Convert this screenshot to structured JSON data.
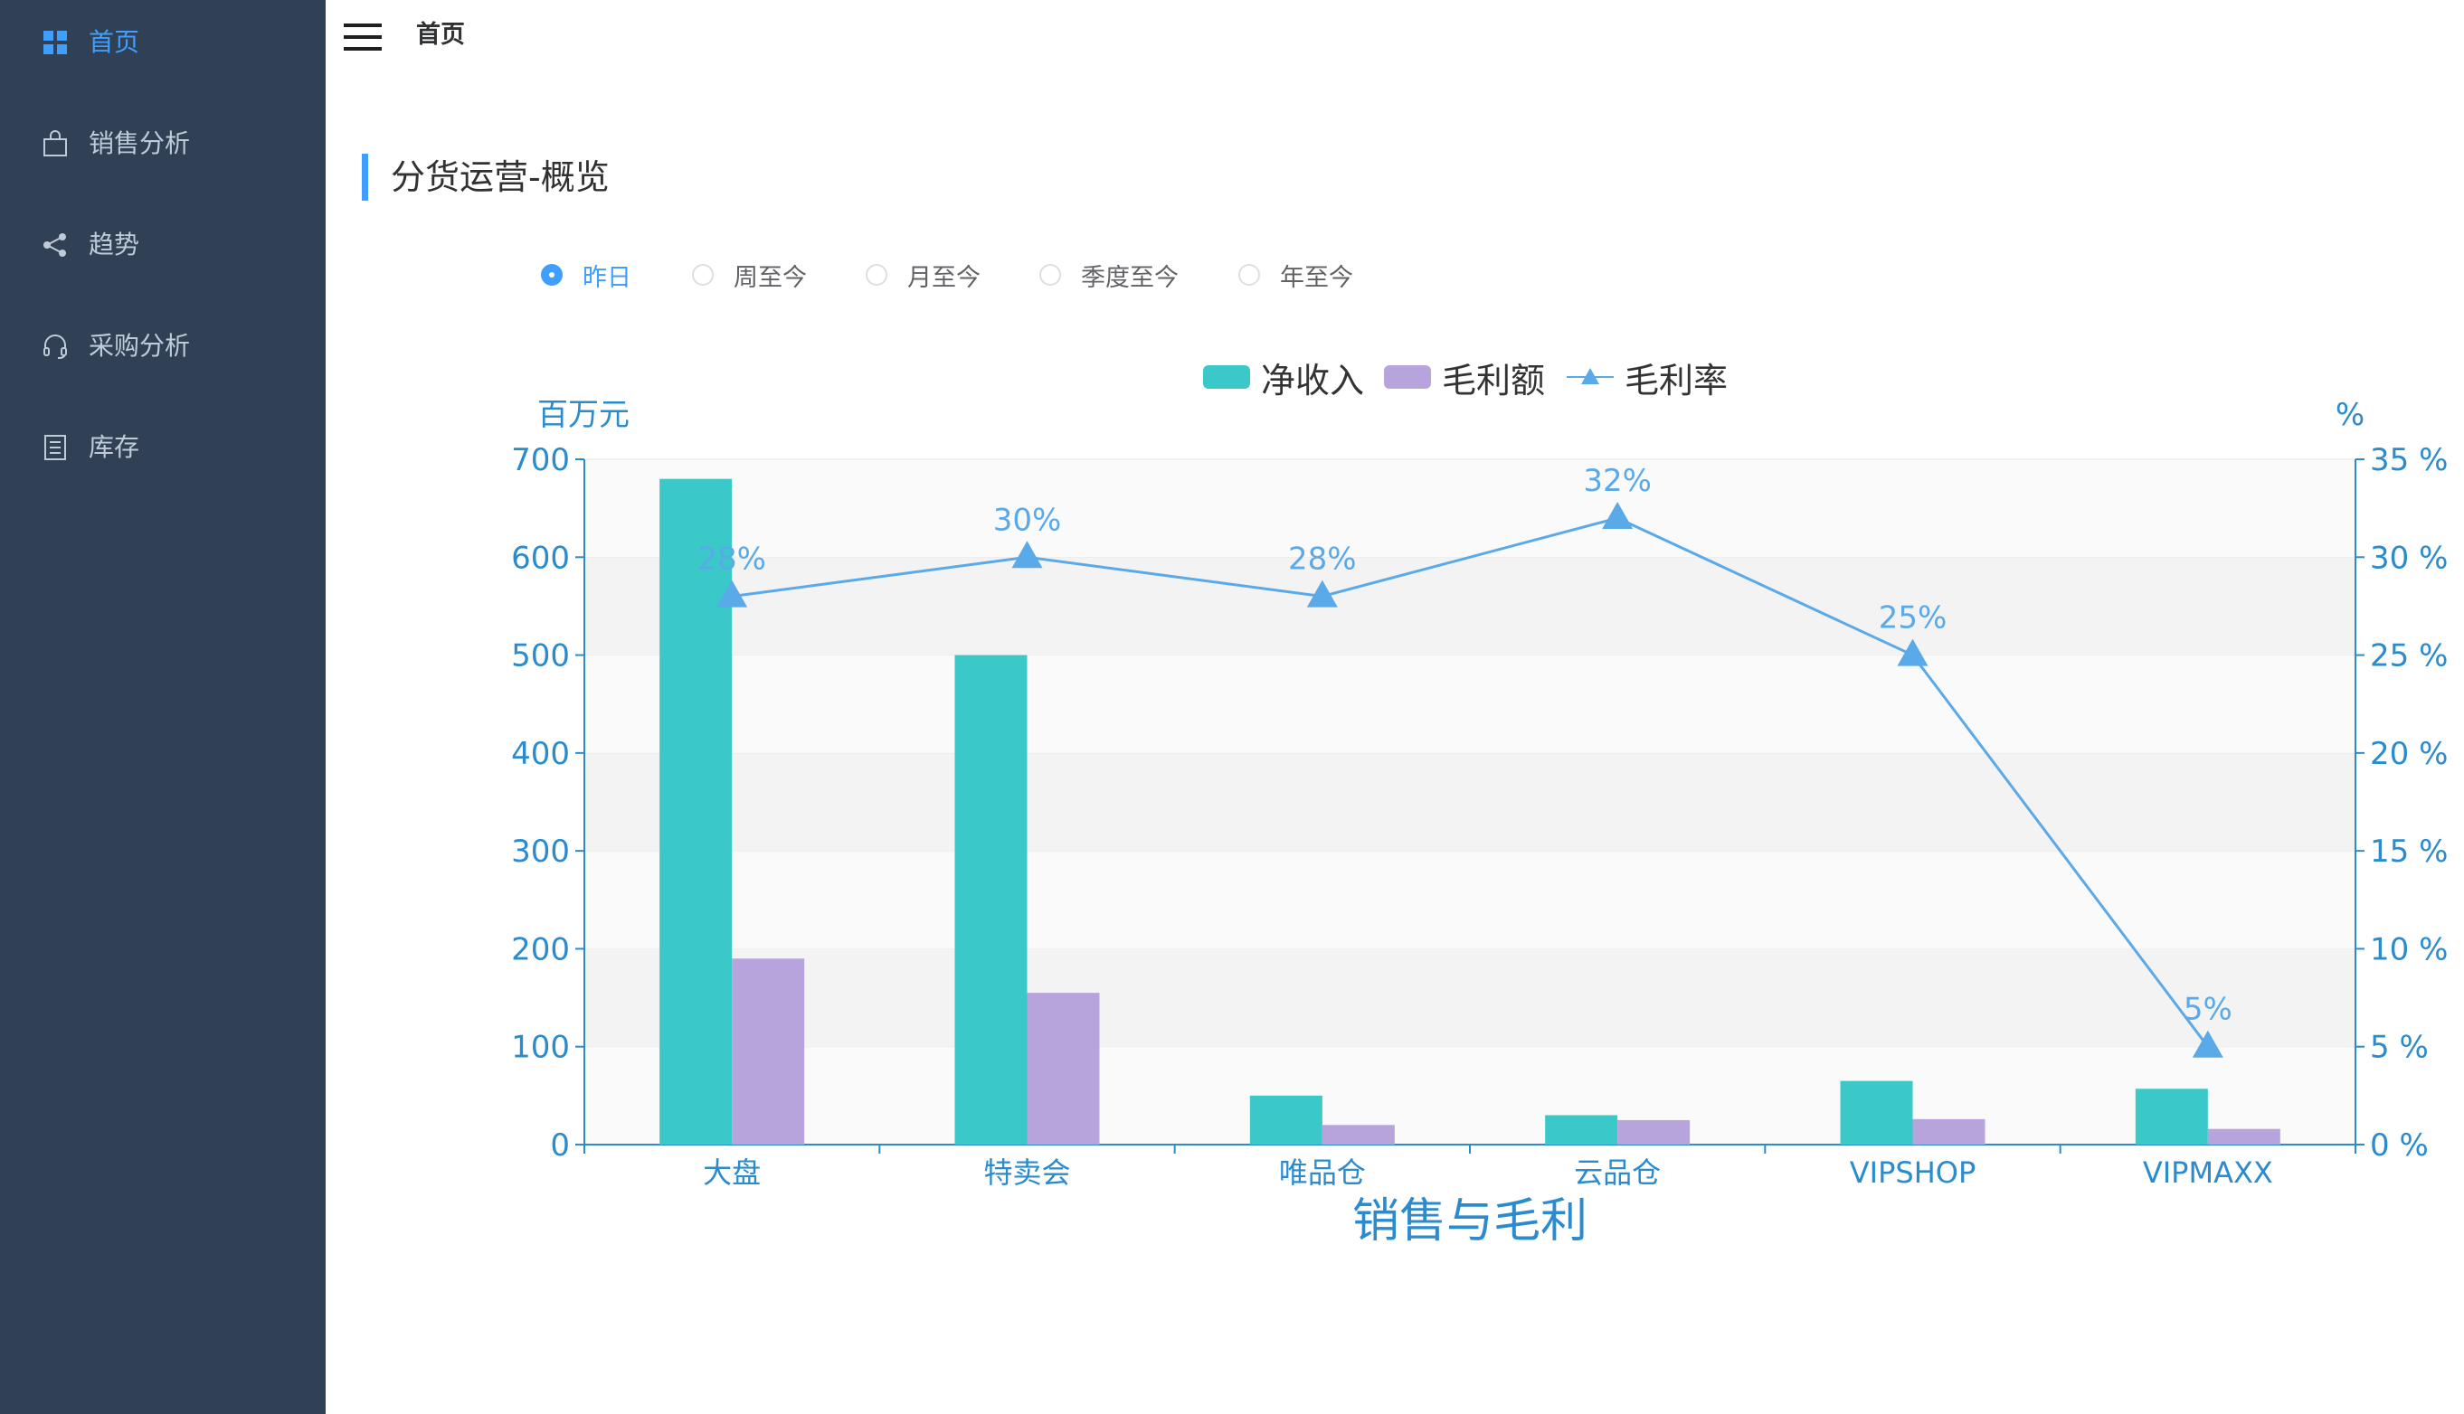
{
  "sidebar": {
    "items": [
      {
        "label": "首页",
        "icon": "dashboard-icon",
        "active": true
      },
      {
        "label": "销售分析",
        "icon": "shopping-bag-icon",
        "active": false
      },
      {
        "label": "趋势",
        "icon": "share-icon",
        "active": false
      },
      {
        "label": "采购分析",
        "icon": "headset-icon",
        "active": false
      },
      {
        "label": "库存",
        "icon": "document-list-icon",
        "active": false
      }
    ]
  },
  "header": {
    "title": "首页",
    "menu_icon": "hamburger-menu-icon"
  },
  "page": {
    "title": "分货运营-概览"
  },
  "period_options": [
    {
      "label": "昨日",
      "checked": true
    },
    {
      "label": "周至今",
      "checked": false
    },
    {
      "label": "月至今",
      "checked": false
    },
    {
      "label": "季度至今",
      "checked": false
    },
    {
      "label": "年至今",
      "checked": false
    }
  ],
  "colors": {
    "sidebar_bg": "#304156",
    "accent": "#409eff",
    "net_income": "#3ac8c8",
    "gross_profit": "#b7a4dc",
    "margin_line": "#5aa9e9",
    "axis": "#2b8bcc"
  },
  "chart_data": {
    "type": "bar",
    "title": "销售与毛利",
    "categories": [
      "大盘",
      "特卖会",
      "唯品仓",
      "云品仓",
      "VIPSHOP",
      "VIPMAXX"
    ],
    "y_left": {
      "label": "百万元",
      "range": [
        0,
        700
      ],
      "ticks": [
        "0",
        "100",
        "200",
        "300",
        "400",
        "500",
        "600",
        "700"
      ]
    },
    "y_right": {
      "label": "%",
      "range": [
        0,
        35
      ],
      "ticks": [
        "0 %",
        "5 %",
        "10 %",
        "15 %",
        "20 %",
        "25 %",
        "30 %",
        "35 %"
      ]
    },
    "series": [
      {
        "name": "净收入",
        "type": "bar",
        "axis": "left",
        "values": [
          680,
          500,
          50,
          30,
          65,
          57
        ]
      },
      {
        "name": "毛利额",
        "type": "bar",
        "axis": "left",
        "values": [
          190,
          155,
          20,
          25,
          26,
          16
        ]
      },
      {
        "name": "毛利率",
        "type": "line",
        "axis": "right",
        "values": [
          28,
          30,
          28,
          32,
          25,
          5
        ],
        "labels": [
          "28%",
          "30%",
          "28%",
          "32%",
          "25%",
          "5%"
        ]
      }
    ],
    "legend_position": "top-center",
    "grid": "alternating horizontal bands"
  }
}
